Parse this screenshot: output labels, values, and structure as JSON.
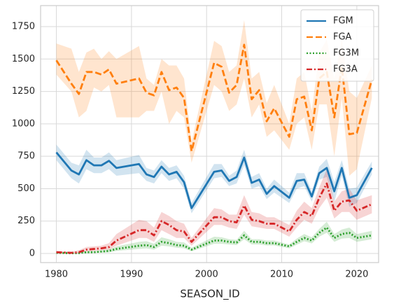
{
  "chart_data": {
    "type": "line",
    "xlabel": "SEASON_ID",
    "x": [
      1980,
      1982,
      1983,
      1984,
      1985,
      1986,
      1987,
      1988,
      1991,
      1992,
      1993,
      1994,
      1995,
      1996,
      1997,
      1998,
      2001,
      2002,
      2003,
      2004,
      2005,
      2006,
      2007,
      2008,
      2009,
      2011,
      2012,
      2013,
      2014,
      2015,
      2016,
      2017,
      2018,
      2019,
      2020,
      2022
    ],
    "series": [
      {
        "name": "FGM",
        "color": "#1f77b4",
        "linestyle": "solid",
        "values": [
          780,
          640,
          610,
          720,
          680,
          680,
          715,
          660,
          690,
          610,
          590,
          670,
          610,
          630,
          550,
          350,
          630,
          640,
          560,
          590,
          740,
          545,
          570,
          460,
          520,
          430,
          560,
          570,
          440,
          620,
          660,
          480,
          660,
          430,
          450,
          660
        ],
        "lower": [
          720,
          580,
          540,
          650,
          620,
          620,
          650,
          600,
          620,
          560,
          540,
          620,
          560,
          580,
          500,
          310,
          580,
          590,
          520,
          540,
          680,
          500,
          520,
          420,
          470,
          390,
          500,
          520,
          400,
          570,
          590,
          400,
          600,
          360,
          390,
          610
        ],
        "upper": [
          840,
          700,
          680,
          800,
          740,
          740,
          780,
          720,
          760,
          660,
          640,
          720,
          660,
          680,
          600,
          390,
          690,
          690,
          600,
          640,
          800,
          590,
          620,
          500,
          570,
          470,
          620,
          620,
          480,
          670,
          730,
          550,
          720,
          500,
          510,
          710
        ]
      },
      {
        "name": "FGA",
        "color": "#ff7f0e",
        "linestyle": "dashed",
        "values": [
          1490,
          1310,
          1230,
          1400,
          1400,
          1380,
          1420,
          1310,
          1350,
          1240,
          1220,
          1400,
          1260,
          1280,
          1200,
          790,
          1470,
          1440,
          1240,
          1300,
          1610,
          1190,
          1260,
          1020,
          1120,
          900,
          1190,
          1210,
          950,
          1350,
          1400,
          1050,
          1440,
          920,
          930,
          1340
        ],
        "lower": [
          1380,
          1250,
          1050,
          1100,
          1280,
          1250,
          1300,
          1050,
          1050,
          1100,
          1100,
          1250,
          1000,
          1100,
          1050,
          700,
          1300,
          1250,
          1100,
          1150,
          1350,
          1050,
          1150,
          900,
          950,
          800,
          1000,
          1050,
          800,
          1150,
          1150,
          750,
          1200,
          600,
          650,
          1200
        ],
        "upper": [
          1620,
          1580,
          1400,
          1550,
          1580,
          1500,
          1560,
          1500,
          1600,
          1350,
          1300,
          1500,
          1450,
          1450,
          1350,
          860,
          1640,
          1600,
          1400,
          1450,
          1800,
          1350,
          1400,
          1160,
          1300,
          1000,
          1350,
          1400,
          1100,
          1550,
          1650,
          1350,
          1650,
          1250,
          1200,
          1450
        ]
      },
      {
        "name": "FG3M",
        "color": "#2ca02c",
        "linestyle": "dotted",
        "values": [
          5,
          2,
          3,
          10,
          10,
          15,
          20,
          35,
          60,
          65,
          50,
          90,
          80,
          65,
          60,
          30,
          100,
          100,
          90,
          85,
          140,
          90,
          90,
          80,
          80,
          55,
          90,
          120,
          100,
          160,
          200,
          120,
          150,
          160,
          120,
          140
        ],
        "lower": [
          0,
          0,
          0,
          3,
          4,
          6,
          8,
          20,
          35,
          40,
          30,
          60,
          55,
          45,
          40,
          18,
          75,
          75,
          70,
          65,
          110,
          70,
          70,
          62,
          62,
          40,
          68,
          95,
          78,
          130,
          160,
          90,
          115,
          120,
          90,
          110
        ],
        "upper": [
          10,
          5,
          8,
          18,
          18,
          25,
          32,
          55,
          90,
          95,
          75,
          125,
          110,
          90,
          85,
          45,
          130,
          125,
          110,
          105,
          175,
          110,
          110,
          100,
          100,
          70,
          115,
          150,
          125,
          190,
          245,
          150,
          185,
          200,
          150,
          175
        ]
      },
      {
        "name": "FG3A",
        "color": "#d62728",
        "linestyle": "dashdot",
        "values": [
          10,
          5,
          10,
          30,
          35,
          40,
          50,
          100,
          180,
          180,
          140,
          250,
          220,
          180,
          170,
          90,
          280,
          280,
          250,
          240,
          370,
          260,
          250,
          230,
          230,
          170,
          260,
          320,
          290,
          430,
          540,
          330,
          400,
          410,
          330,
          380
        ],
        "lower": [
          0,
          0,
          0,
          15,
          20,
          25,
          30,
          60,
          120,
          120,
          90,
          180,
          150,
          120,
          120,
          60,
          220,
          220,
          200,
          190,
          300,
          210,
          200,
          190,
          190,
          130,
          200,
          260,
          230,
          350,
          430,
          270,
          320,
          320,
          260,
          310
        ],
        "upper": [
          20,
          15,
          25,
          50,
          55,
          60,
          80,
          150,
          260,
          250,
          200,
          320,
          290,
          250,
          230,
          120,
          350,
          340,
          300,
          300,
          450,
          320,
          310,
          280,
          280,
          220,
          330,
          400,
          350,
          510,
          650,
          400,
          480,
          500,
          410,
          450
        ]
      }
    ],
    "xlim": [
      1977.9,
      2022.9
    ],
    "xticks": [
      1980,
      1990,
      2000,
      2010,
      2020
    ],
    "ylim": [
      -70,
      1912
    ],
    "yticks": [
      0,
      250,
      500,
      750,
      1000,
      1250,
      1500,
      1750
    ],
    "grid": true,
    "legend": "upper right"
  }
}
